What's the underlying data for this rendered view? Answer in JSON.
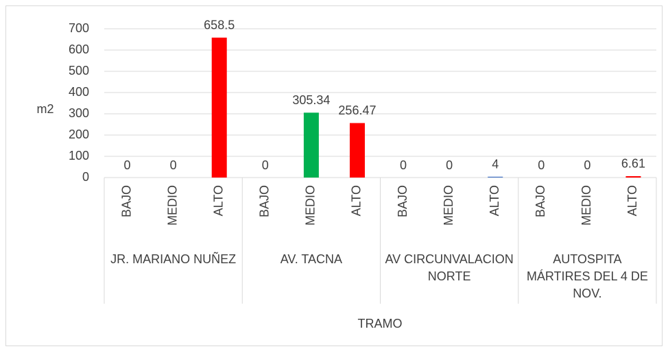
{
  "chart_data": {
    "type": "bar",
    "y_label": "m2",
    "x_label": "TRAMO",
    "categories": [
      "BAJO",
      "MEDIO",
      "ALTO",
      "BAJO",
      "MEDIO",
      "ALTO",
      "BAJO",
      "MEDIO",
      "ALTO",
      "BAJO",
      "MEDIO",
      "ALTO"
    ],
    "groups": [
      "JR. MARIANO NUÑEZ",
      "AV. TACNA",
      "AV CIRCUNVALACION NORTE",
      "AUTOSPITA MÁRTIRES DEL 4 DE NOV."
    ],
    "values": [
      0,
      0,
      658.5,
      0,
      305.34,
      256.47,
      0,
      0,
      4,
      0,
      0,
      6.61
    ],
    "colors": [
      "#4472c4",
      "#00b050",
      "#ff0000",
      "#4472c4",
      "#00b050",
      "#ff0000",
      "#4472c4",
      "#00b050",
      "#4472c4",
      "#4472c4",
      "#00b050",
      "#ff0000"
    ],
    "ylim": [
      0,
      700
    ],
    "yticks": [
      0,
      100,
      200,
      300,
      400,
      500,
      600,
      700
    ],
    "grid": true
  }
}
